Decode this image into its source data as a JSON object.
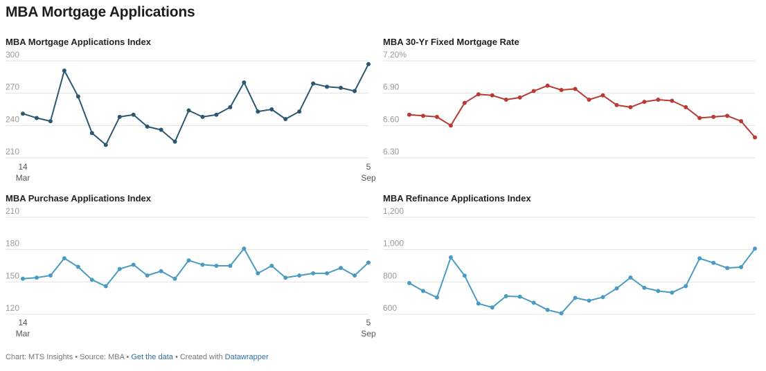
{
  "page": {
    "title": "MBA Mortgage Applications",
    "footer": {
      "chart_by": "Chart: MTS Insights",
      "sep1": " • ",
      "source": "Source: MBA",
      "sep2": " • ",
      "get_data": "Get the data",
      "sep3": " • ",
      "created_with": "Created with ",
      "datawrapper": "Datawrapper"
    }
  },
  "chart_data": [
    {
      "type": "line",
      "title": "MBA Mortgage Applications Index",
      "color": "#2b5770",
      "yticks": [
        "300",
        "270",
        "240",
        "210"
      ],
      "ytick_values": [
        300,
        270,
        240,
        210
      ],
      "ylim": [
        210,
        300
      ],
      "xticks": [
        {
          "index": 0,
          "day": "14",
          "month": "Mar"
        },
        {
          "index": 25,
          "day": "5",
          "month": "Sep"
        }
      ],
      "series": [
        {
          "values": [
            251,
            247,
            244,
            291,
            267,
            233,
            222,
            248,
            250,
            239,
            236,
            225,
            254,
            248,
            250,
            257,
            280,
            253,
            255,
            246,
            253,
            279,
            276,
            275,
            272,
            297
          ]
        }
      ]
    },
    {
      "type": "line",
      "title": "MBA 30-Yr Fixed Mortgage Rate",
      "color": "#b83a35",
      "yticks": [
        "7.20%",
        "6.90",
        "6.60",
        "6.30"
      ],
      "ytick_values": [
        7.2,
        6.9,
        6.6,
        6.3
      ],
      "ylim": [
        6.3,
        7.2
      ],
      "xticks": [],
      "series": [
        {
          "values": [
            6.7,
            6.69,
            6.68,
            6.6,
            6.81,
            6.89,
            6.88,
            6.84,
            6.86,
            6.92,
            6.97,
            6.93,
            6.94,
            6.84,
            6.88,
            6.79,
            6.77,
            6.82,
            6.84,
            6.83,
            6.77,
            6.67,
            6.68,
            6.69,
            6.64,
            6.49
          ]
        }
      ]
    },
    {
      "type": "line",
      "title": "MBA Purchase Applications Index",
      "color": "#4a9bc1",
      "yticks": [
        "210",
        "180",
        "150",
        "120"
      ],
      "ytick_values": [
        210,
        180,
        150,
        120
      ],
      "ylim": [
        120,
        210
      ],
      "xticks": [
        {
          "index": 0,
          "day": "14",
          "month": "Mar"
        },
        {
          "index": 25,
          "day": "5",
          "month": "Sep"
        }
      ],
      "series": [
        {
          "values": [
            153,
            154,
            156,
            172,
            164,
            152,
            146,
            162,
            166,
            156,
            160,
            153,
            170,
            166,
            165,
            165,
            181,
            158,
            165,
            154,
            156,
            158,
            158,
            163,
            156,
            168
          ]
        }
      ]
    },
    {
      "type": "line",
      "title": "MBA Refinance Applications Index",
      "color": "#4a9bc1",
      "yticks": [
        "1,200",
        "1,000",
        "800",
        "600"
      ],
      "ytick_values": [
        1200,
        1000,
        800,
        600
      ],
      "ylim": [
        600,
        1200
      ],
      "xticks": [],
      "series": [
        {
          "values": [
            793,
            744,
            704,
            952,
            839,
            666,
            642,
            712,
            709,
            671,
            627,
            606,
            701,
            684,
            706,
            760,
            827,
            764,
            744,
            734,
            774,
            946,
            918,
            886,
            892,
            1006
          ]
        }
      ]
    }
  ]
}
